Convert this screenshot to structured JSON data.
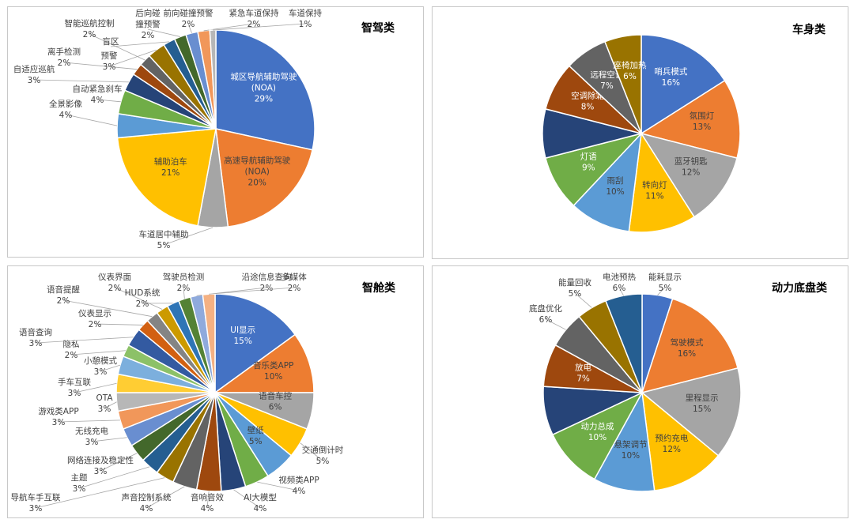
{
  "chart_data": [
    {
      "type": "pie",
      "title": "智驾类",
      "slices": [
        {
          "name": "城区导航辅助驾驶\n(NOA)",
          "pct": "29%",
          "value": 29,
          "color": "#4472C4"
        },
        {
          "name": "高速导航辅助驾驶\n(NOA)",
          "pct": "20%",
          "value": 20,
          "color": "#ED7D31"
        },
        {
          "name": "车道居中辅助",
          "pct": "5%",
          "value": 5,
          "color": "#A5A5A5"
        },
        {
          "name": "辅助泊车",
          "pct": "21%",
          "value": 21,
          "color": "#FFC000"
        },
        {
          "name": "全景影像",
          "pct": "4%",
          "value": 4,
          "color": "#5B9BD5"
        },
        {
          "name": "自动紧急刹车",
          "pct": "4%",
          "value": 4,
          "color": "#70AD47"
        },
        {
          "name": "自适应巡航",
          "pct": "3%",
          "value": 3,
          "color": "#264478"
        },
        {
          "name": "离手检测",
          "pct": "2%",
          "value": 2,
          "color": "#9E480E"
        },
        {
          "name": "智能巡航控制",
          "pct": "2%",
          "value": 2,
          "color": "#636363"
        },
        {
          "name": "预警",
          "pct": "3%",
          "value": 3,
          "color": "#997300"
        },
        {
          "name": "盲区",
          "pct": "",
          "value": 2,
          "color": "#255E91"
        },
        {
          "name": "后向碰\n撞预警",
          "pct": "2%",
          "value": 2,
          "color": "#43682B"
        },
        {
          "name": "前向碰撞预警",
          "pct": "2%",
          "value": 2,
          "color": "#698ED0"
        },
        {
          "name": "紧急车道保持",
          "pct": "2%",
          "value": 2,
          "color": "#F1975A"
        },
        {
          "name": "车道保持",
          "pct": "1%",
          "value": 1,
          "color": "#B7B7B7"
        }
      ]
    },
    {
      "type": "pie",
      "title": "车身类",
      "slices": [
        {
          "name": "哨兵模式",
          "pct": "16%",
          "value": 16,
          "color": "#4472C4"
        },
        {
          "name": "氛围灯",
          "pct": "13%",
          "value": 13,
          "color": "#ED7D31"
        },
        {
          "name": "蓝牙钥匙",
          "pct": "12%",
          "value": 12,
          "color": "#A5A5A5"
        },
        {
          "name": "转向灯",
          "pct": "11%",
          "value": 11,
          "color": "#FFC000"
        },
        {
          "name": "雨刮",
          "pct": "10%",
          "value": 10,
          "color": "#5B9BD5"
        },
        {
          "name": "灯语",
          "pct": "9%",
          "value": 9,
          "color": "#70AD47"
        },
        {
          "name": "",
          "pct": "",
          "value": 8,
          "color": "#264478"
        },
        {
          "name": "空调除霜",
          "pct": "8%",
          "value": 8,
          "color": "#9E480E"
        },
        {
          "name": "远程空调",
          "pct": "7%",
          "value": 7,
          "color": "#636363"
        },
        {
          "name": "座椅加热",
          "pct": "6%",
          "value": 6,
          "color": "#997300"
        }
      ]
    },
    {
      "type": "pie",
      "title": "智舱类",
      "slices": [
        {
          "name": "UI显示",
          "pct": "15%",
          "value": 15,
          "color": "#4472C4"
        },
        {
          "name": "音乐类APP",
          "pct": "10%",
          "value": 10,
          "color": "#ED7D31"
        },
        {
          "name": "语音车控",
          "pct": "6%",
          "value": 6,
          "color": "#A5A5A5"
        },
        {
          "name": "交通倒计时",
          "pct": "5%",
          "value": 5,
          "color": "#FFC000"
        },
        {
          "name": "壁纸",
          "pct": "5%",
          "value": 5,
          "color": "#5B9BD5"
        },
        {
          "name": "视频类APP",
          "pct": "4%",
          "value": 4,
          "color": "#70AD47"
        },
        {
          "name": "AI大模型",
          "pct": "4%",
          "value": 4,
          "color": "#264478"
        },
        {
          "name": "音响音效",
          "pct": "4%",
          "value": 4,
          "color": "#9E480E"
        },
        {
          "name": "声音控制系统",
          "pct": "4%",
          "value": 4,
          "color": "#636363"
        },
        {
          "name": "导航车手互联",
          "pct": "3%",
          "value": 3,
          "color": "#997300"
        },
        {
          "name": "主题",
          "pct": "3%",
          "value": 3,
          "color": "#255E91"
        },
        {
          "name": "网络连接及稳定性",
          "pct": "3%",
          "value": 3,
          "color": "#43682B"
        },
        {
          "name": "无线充电",
          "pct": "3%",
          "value": 3,
          "color": "#698ED0"
        },
        {
          "name": "游戏类APP",
          "pct": "3%",
          "value": 3,
          "color": "#F1975A"
        },
        {
          "name": "OTA",
          "pct": "3%",
          "value": 3,
          "color": "#B7B7B7"
        },
        {
          "name": "手车互联",
          "pct": "3%",
          "value": 3,
          "color": "#FFCD33"
        },
        {
          "name": "小憩模式",
          "pct": "3%",
          "value": 3,
          "color": "#7CAFDD"
        },
        {
          "name": "隐私",
          "pct": "2%",
          "value": 2,
          "color": "#8CC168"
        },
        {
          "name": "语音查询",
          "pct": "3%",
          "value": 3,
          "color": "#335AA1"
        },
        {
          "name": "仪表显示",
          "pct": "2%",
          "value": 2,
          "color": "#D26012"
        },
        {
          "name": "语音提醒",
          "pct": "2%",
          "value": 2,
          "color": "#848484"
        },
        {
          "name": "仪表界面",
          "pct": "2%",
          "value": 2,
          "color": "#CC9A00"
        },
        {
          "name": "HUD系统",
          "pct": "2%",
          "value": 2,
          "color": "#2E75B6"
        },
        {
          "name": "驾驶员检测",
          "pct": "2%",
          "value": 2,
          "color": "#548235"
        },
        {
          "name": "沿途信息查询",
          "pct": "2%",
          "value": 2,
          "color": "#8FAADC"
        },
        {
          "name": "多媒体",
          "pct": "2%",
          "value": 2,
          "color": "#F4B183"
        }
      ]
    },
    {
      "type": "pie",
      "title": "动力底盘类",
      "slices": [
        {
          "name": "能耗显示",
          "pct": "5%",
          "value": 5,
          "color": "#4472C4"
        },
        {
          "name": "驾驶模式",
          "pct": "16%",
          "value": 16,
          "color": "#ED7D31"
        },
        {
          "name": "里程显示",
          "pct": "15%",
          "value": 15,
          "color": "#A5A5A5"
        },
        {
          "name": "预约充电",
          "pct": "12%",
          "value": 12,
          "color": "#FFC000"
        },
        {
          "name": "悬架调节",
          "pct": "10%",
          "value": 10,
          "color": "#5B9BD5"
        },
        {
          "name": "动力总成",
          "pct": "10%",
          "value": 10,
          "color": "#70AD47"
        },
        {
          "name": "",
          "pct": "",
          "value": 8,
          "color": "#264478"
        },
        {
          "name": "放电",
          "pct": "7%",
          "value": 7,
          "color": "#9E480E"
        },
        {
          "name": "底盘优化",
          "pct": "6%",
          "value": 6,
          "color": "#636363"
        },
        {
          "name": "能量回收",
          "pct": "5%",
          "value": 5,
          "color": "#997300"
        },
        {
          "name": "电池预热",
          "pct": "6%",
          "value": 6,
          "color": "#255E91"
        }
      ]
    }
  ]
}
